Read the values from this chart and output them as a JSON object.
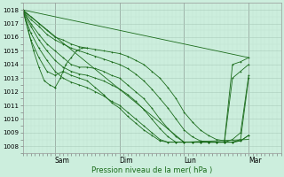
{
  "bg_color": "#cceedd",
  "grid_color_major": "#aaccbb",
  "grid_color_minor": "#bbddcc",
  "line_color": "#1a6b1a",
  "marker": "+",
  "xlabel": "Pression niveau de la mer( hPa )",
  "ylim": [
    1007.5,
    1018.5
  ],
  "yticks": [
    1008,
    1009,
    1010,
    1011,
    1012,
    1013,
    1014,
    1015,
    1016,
    1017,
    1018
  ],
  "xtick_labels": [
    "Sam",
    "Dim",
    "Lun",
    "Mar"
  ],
  "xtick_positions": [
    24,
    72,
    120,
    168
  ],
  "xlim": [
    0,
    192
  ],
  "xminor_step": 3,
  "lines": [
    {
      "x": [
        0,
        6,
        12,
        18,
        24,
        30,
        36,
        42,
        48,
        54,
        60,
        66,
        72,
        78,
        84,
        90,
        96,
        102,
        108,
        114,
        120,
        126,
        132,
        138,
        144,
        150,
        156,
        162,
        168
      ],
      "y": [
        1018,
        1017.5,
        1017.0,
        1016.5,
        1016.0,
        1015.8,
        1015.5,
        1015.3,
        1015.2,
        1015.1,
        1015.0,
        1014.9,
        1014.8,
        1014.6,
        1014.3,
        1014.0,
        1013.5,
        1013.0,
        1012.3,
        1011.5,
        1010.5,
        1009.8,
        1009.2,
        1008.8,
        1008.5,
        1008.4,
        1014.0,
        1014.2,
        1014.5
      ]
    },
    {
      "x": [
        0,
        6,
        12,
        18,
        24,
        30,
        36,
        42,
        48,
        54,
        60,
        66,
        72,
        78,
        84,
        90,
        96,
        102,
        108,
        114,
        120,
        126,
        132,
        138,
        144,
        150,
        156,
        162,
        168
      ],
      "y": [
        1018,
        1017.3,
        1016.8,
        1016.2,
        1015.8,
        1015.5,
        1015.2,
        1015.0,
        1014.8,
        1014.6,
        1014.4,
        1014.2,
        1014.0,
        1013.7,
        1013.3,
        1012.8,
        1012.2,
        1011.5,
        1010.8,
        1010.0,
        1009.2,
        1008.7,
        1008.4,
        1008.3,
        1008.3,
        1008.3,
        1013.0,
        1013.5,
        1014.0
      ]
    },
    {
      "x": [
        0,
        6,
        12,
        18,
        24,
        30,
        36,
        42,
        48,
        54,
        60,
        66,
        72,
        78,
        84,
        90,
        96,
        102,
        108,
        114,
        120,
        126,
        132,
        138,
        144,
        150,
        156,
        162,
        168
      ],
      "y": [
        1018,
        1017.0,
        1016.2,
        1015.5,
        1015.0,
        1014.5,
        1014.0,
        1013.8,
        1013.8,
        1013.7,
        1013.5,
        1013.2,
        1013.0,
        1012.5,
        1012.0,
        1011.5,
        1010.8,
        1010.0,
        1009.3,
        1008.7,
        1008.3,
        1008.3,
        1008.3,
        1008.3,
        1008.3,
        1008.3,
        1008.5,
        1009.0,
        1013.2
      ]
    },
    {
      "x": [
        0,
        6,
        12,
        18,
        24,
        30,
        36,
        42,
        48,
        54,
        60,
        66,
        72,
        78,
        84,
        90,
        96,
        102,
        108,
        114,
        120,
        126,
        132,
        138,
        144,
        150,
        156,
        162,
        168
      ],
      "y": [
        1018,
        1016.8,
        1015.8,
        1015.0,
        1014.3,
        1013.8,
        1013.5,
        1013.3,
        1013.2,
        1013.0,
        1012.8,
        1012.5,
        1012.2,
        1011.8,
        1011.3,
        1010.7,
        1010.0,
        1009.3,
        1008.7,
        1008.3,
        1008.3,
        1008.3,
        1008.3,
        1008.3,
        1008.3,
        1008.3,
        1008.3,
        1008.5,
        1013.0
      ]
    },
    {
      "x": [
        0,
        6,
        12,
        18,
        24,
        30,
        36,
        42,
        48,
        54,
        60,
        66,
        72,
        78,
        84,
        90,
        96,
        102,
        108,
        114,
        120,
        126,
        132,
        138,
        144,
        150,
        156,
        162,
        168
      ],
      "y": [
        1018,
        1016.3,
        1015.2,
        1014.3,
        1013.5,
        1013.0,
        1012.7,
        1012.5,
        1012.3,
        1012.0,
        1011.7,
        1011.3,
        1011.0,
        1010.5,
        1010.0,
        1009.5,
        1009.0,
        1008.5,
        1008.3,
        1008.3,
        1008.3,
        1008.3,
        1008.3,
        1008.3,
        1008.3,
        1008.3,
        1008.3,
        1008.4,
        1008.8
      ]
    },
    {
      "x": [
        0,
        6,
        12,
        18,
        24,
        30,
        36,
        42,
        48,
        54,
        60,
        66,
        72,
        78,
        84,
        90,
        96,
        102,
        108,
        114,
        120,
        126,
        132,
        138,
        144,
        150,
        156,
        162,
        168
      ],
      "y": [
        1018,
        1015.8,
        1014.5,
        1013.5,
        1013.2,
        1013.5,
        1013.2,
        1013.0,
        1012.8,
        1012.3,
        1011.8,
        1011.2,
        1010.8,
        1010.2,
        1009.7,
        1009.2,
        1008.8,
        1008.4,
        1008.3,
        1008.3,
        1008.3,
        1008.3,
        1008.3,
        1008.3,
        1008.3,
        1008.3,
        1008.3,
        1008.4,
        1008.8
      ]
    },
    {
      "x": [
        0,
        4,
        8,
        12,
        16,
        20,
        24
      ],
      "y": [
        1018,
        1016.5,
        1015.0,
        1013.8,
        1012.8,
        1012.5,
        1012.3
      ]
    },
    {
      "x": [
        24,
        28,
        32,
        36,
        40,
        44,
        48
      ],
      "y": [
        1012.3,
        1013.0,
        1014.0,
        1014.5,
        1015.0,
        1015.2,
        1015.2
      ]
    }
  ],
  "lines_simple": [
    {
      "x": [
        0,
        168
      ],
      "y": [
        1018,
        1014.5
      ]
    },
    {
      "x": [
        0,
        120,
        168
      ],
      "y": [
        1018,
        1008.3,
        1008.5
      ]
    }
  ]
}
